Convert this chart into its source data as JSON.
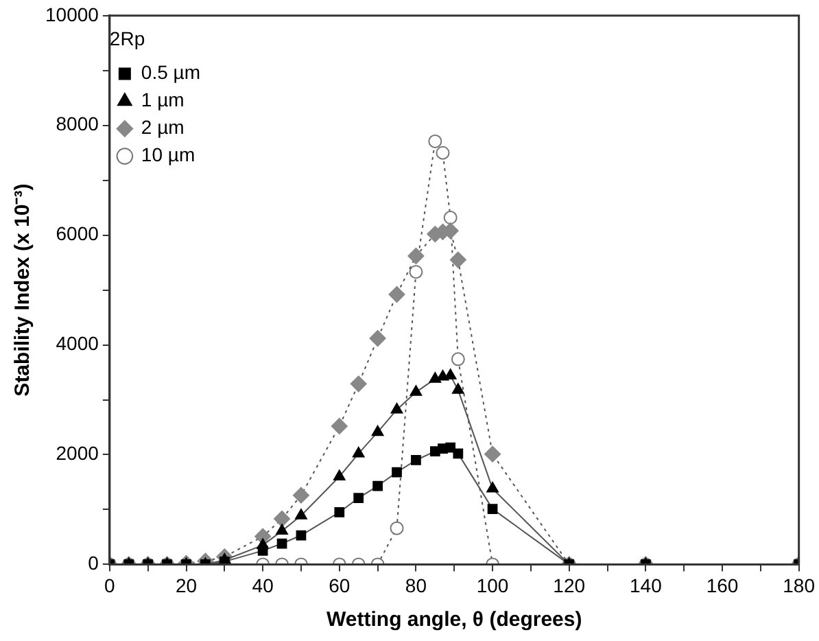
{
  "chart_data": {
    "type": "line",
    "xlabel": "Wetting angle, θ (degrees)",
    "ylabel": "Stability Index (x 10⁻³)",
    "legend_title": "2Rp",
    "legend": "top left",
    "grid": false,
    "xlim": [
      0,
      180
    ],
    "ylim": [
      0,
      10000
    ],
    "xticks": [
      0,
      {
        "value": 10,
        "label": null
      },
      20,
      {
        "value": 30,
        "label": null
      },
      40,
      {
        "value": 50,
        "label": null
      },
      60,
      {
        "value": 70,
        "label": null
      },
      80,
      {
        "value": 90,
        "label": null
      },
      100,
      {
        "value": 110,
        "label": null
      },
      120,
      {
        "value": 130,
        "label": null
      },
      140,
      {
        "value": 150,
        "label": null
      },
      160,
      {
        "value": 170,
        "label": null
      },
      180
    ],
    "yticks": [
      0,
      {
        "value": 1000,
        "label": null
      },
      2000,
      {
        "value": 3000,
        "label": null
      },
      4000,
      {
        "value": 5000,
        "label": null
      },
      6000,
      {
        "value": 7000,
        "label": null
      },
      8000,
      {
        "value": 9000,
        "label": null
      },
      10000
    ],
    "series": [
      {
        "name": "0.5 µm",
        "color": "#000000",
        "marker": "square",
        "line_style": "solid",
        "x": [
          0,
          5,
          10,
          15,
          20,
          25,
          30,
          40,
          45,
          50,
          60,
          65,
          70,
          75,
          80,
          85,
          87,
          89,
          91,
          100,
          120,
          140,
          180
        ],
        "values": [
          0,
          0,
          0,
          0,
          0,
          0,
          50,
          250,
          380,
          530,
          950,
          1210,
          1430,
          1680,
          1900,
          2060,
          2110,
          2130,
          2020,
          1010,
          0,
          0,
          0
        ]
      },
      {
        "name": "1 µm",
        "color": "#000000",
        "marker": "triangle",
        "line_style": "solid",
        "x": [
          0,
          5,
          10,
          15,
          20,
          25,
          30,
          40,
          45,
          50,
          60,
          65,
          70,
          75,
          80,
          85,
          87,
          89,
          91,
          100,
          120,
          140,
          180
        ],
        "values": [
          0,
          0,
          0,
          0,
          0,
          0,
          80,
          350,
          610,
          890,
          1600,
          2020,
          2410,
          2820,
          3140,
          3380,
          3420,
          3440,
          3180,
          1380,
          0,
          0,
          0
        ]
      },
      {
        "name": "2 µm",
        "color": "#888888",
        "marker": "diamond",
        "line_style": "dotted",
        "x": [
          0,
          5,
          10,
          15,
          20,
          25,
          30,
          40,
          45,
          50,
          60,
          65,
          70,
          75,
          80,
          85,
          87,
          89,
          91,
          100,
          120,
          140,
          180
        ],
        "values": [
          0,
          0,
          0,
          0,
          20,
          60,
          140,
          510,
          830,
          1260,
          2520,
          3290,
          4120,
          4920,
          5620,
          6020,
          6060,
          6080,
          5550,
          2010,
          0,
          0,
          0
        ]
      },
      {
        "name": "10 µm",
        "color": "#777777",
        "marker": "circle",
        "line_style": "dotted",
        "x": [
          0,
          5,
          10,
          15,
          20,
          25,
          30,
          40,
          45,
          50,
          60,
          65,
          70,
          75,
          80,
          85,
          87,
          89,
          91,
          100,
          120,
          140,
          180
        ],
        "values": [
          0,
          0,
          0,
          0,
          0,
          0,
          0,
          0,
          0,
          0,
          0,
          0,
          0,
          660,
          5330,
          7710,
          7500,
          6320,
          3740,
          0,
          0,
          0,
          0
        ]
      }
    ]
  }
}
